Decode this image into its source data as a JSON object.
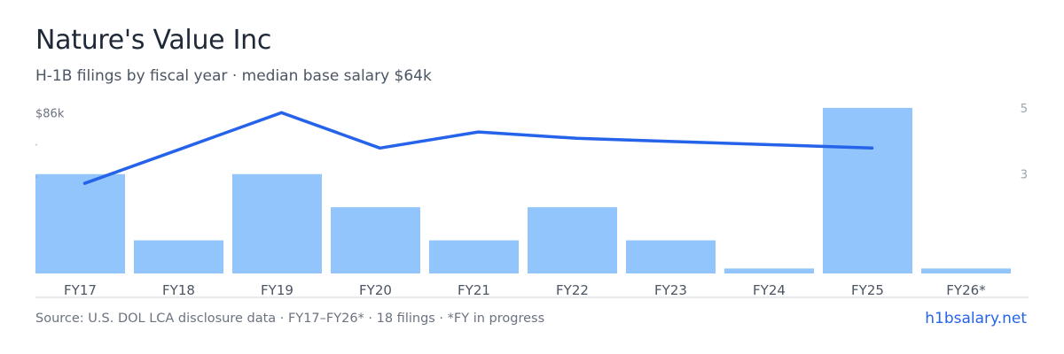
{
  "header": {
    "title": "Nature's Value Inc",
    "subtitle": "H-1B filings by fiscal year · median base salary $64k"
  },
  "footer": {
    "source": "Source: U.S. DOL LCA disclosure data · FY17–FY26* · 18 filings · *FY in progress",
    "site": "h1bsalary.net"
  },
  "chart_data": {
    "type": "bar",
    "categories": [
      "FY17",
      "FY18",
      "FY19",
      "FY20",
      "FY21",
      "FY22",
      "FY23",
      "FY24",
      "FY25",
      "FY26*"
    ],
    "series": [
      {
        "type": "bar",
        "axis": "right",
        "values": [
          3.0,
          1.0,
          3.0,
          2.0,
          1.0,
          2.0,
          1.0,
          0.15,
          5.0,
          0.15
        ],
        "color": "#93c5fd"
      },
      {
        "type": "line",
        "axis": "left",
        "values": [
          64,
          75,
          86,
          75,
          80,
          78,
          77,
          76,
          75,
          null
        ],
        "color": "#2563eb"
      }
    ],
    "left_axis": {
      "tick_labels": [
        "$86k",
        "",
        ""
      ],
      "tick_values": [
        86,
        76,
        66
      ],
      "range": [
        36,
        88
      ]
    },
    "right_axis": {
      "tick_labels": [
        "5",
        "3"
      ],
      "tick_values": [
        5,
        3
      ],
      "range": [
        0,
        5.05
      ]
    },
    "grid": false,
    "colors": {
      "bar": "#93c5fd",
      "line": "#2563eb",
      "axis_text": "#6b7280",
      "right_axis_text": "#9ca3af",
      "baseline": "#d1d5db"
    }
  }
}
